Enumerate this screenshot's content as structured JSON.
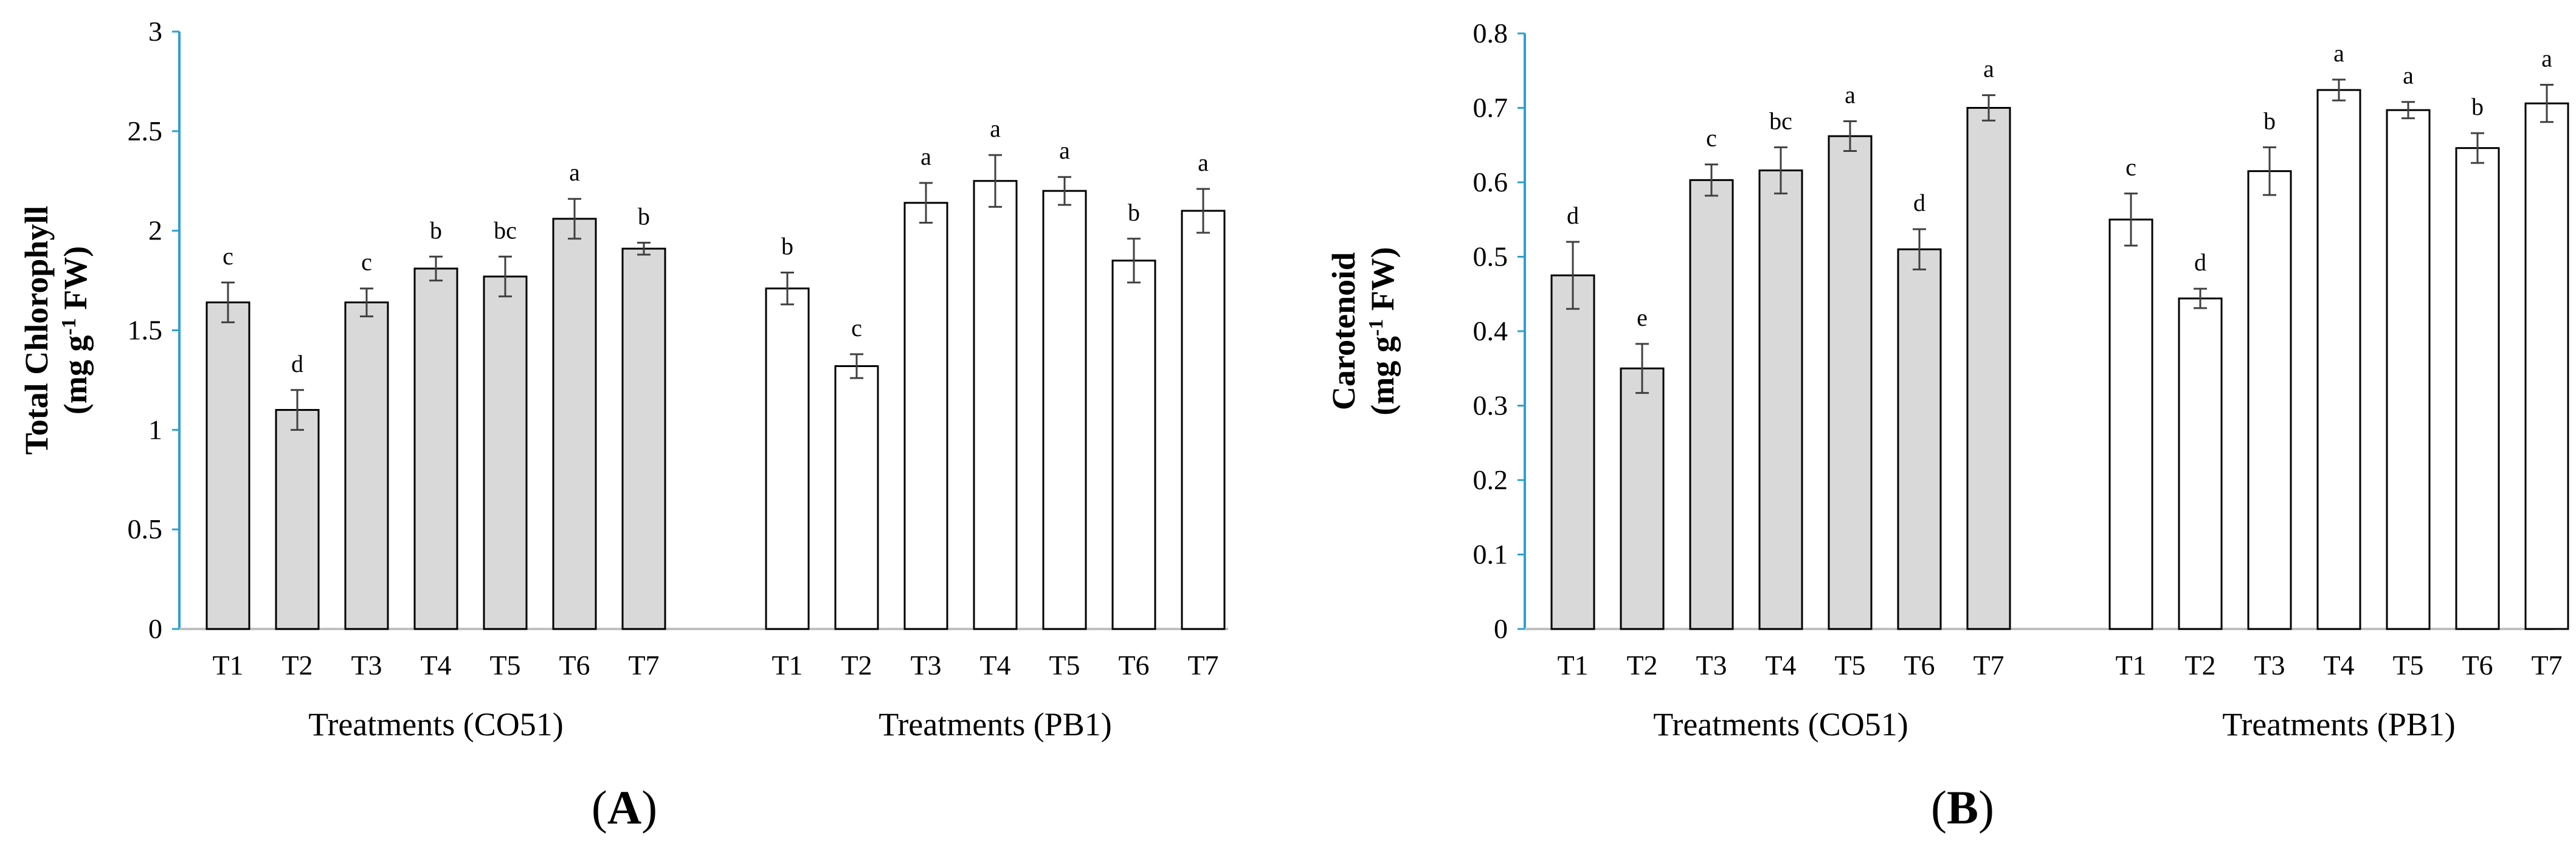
{
  "chart_data": [
    {
      "type": "bar",
      "panel_label": "A",
      "ylabel_line1": "Total Chlorophyll",
      "ylabel_line2": "(mg g",
      "ylabel_sup": "-1",
      "ylabel_line2_end": " FW)",
      "ylim": [
        0,
        3
      ],
      "yticks": [
        "0",
        "0.5",
        "1",
        "1.5",
        "2",
        "2.5",
        "3"
      ],
      "ytick_values": [
        0,
        0.5,
        1,
        1.5,
        2,
        2.5,
        3
      ],
      "categories": [
        "T1",
        "T2",
        "T3",
        "T4",
        "T5",
        "T6",
        "T7"
      ],
      "groups": [
        {
          "name": "Treatments (CO51)",
          "fill": "#d9d9d9",
          "values": [
            1.64,
            1.1,
            1.64,
            1.81,
            1.77,
            2.06,
            1.91
          ],
          "errors": [
            0.1,
            0.1,
            0.07,
            0.06,
            0.1,
            0.1,
            0.03
          ],
          "letters": [
            "c",
            "d",
            "c",
            "b",
            "bc",
            "a",
            "b"
          ]
        },
        {
          "name": "Treatments (PB1)",
          "fill": "#ffffff",
          "values": [
            1.71,
            1.32,
            2.14,
            2.25,
            2.2,
            1.85,
            2.1
          ],
          "errors": [
            0.08,
            0.06,
            0.1,
            0.13,
            0.07,
            0.11,
            0.11
          ],
          "letters": [
            "b",
            "c",
            "a",
            "a",
            "a",
            "b",
            "a"
          ]
        }
      ]
    },
    {
      "type": "bar",
      "panel_label": "B",
      "ylabel_line1": "Carotenoid",
      "ylabel_line2": "(mg g",
      "ylabel_sup": "-1",
      "ylabel_line2_end": " FW)",
      "ylim": [
        0,
        0.8
      ],
      "yticks": [
        "0",
        "0.1",
        "0.2",
        "0.3",
        "0.4",
        "0.5",
        "0.6",
        "0.7",
        "0.8"
      ],
      "ytick_values": [
        0,
        0.1,
        0.2,
        0.3,
        0.4,
        0.5,
        0.6,
        0.7,
        0.8
      ],
      "categories": [
        "T1",
        "T2",
        "T3",
        "T4",
        "T5",
        "T6",
        "T7"
      ],
      "groups": [
        {
          "name": "Treatments (CO51)",
          "fill": "#d9d9d9",
          "values": [
            0.475,
            0.35,
            0.603,
            0.616,
            0.662,
            0.51,
            0.7
          ],
          "errors": [
            0.045,
            0.033,
            0.021,
            0.031,
            0.02,
            0.027,
            0.017
          ],
          "letters": [
            "d",
            "e",
            "c",
            "bc",
            "a",
            "d",
            "a"
          ]
        },
        {
          "name": "Treatments (PB1)",
          "fill": "#ffffff",
          "values": [
            0.55,
            0.444,
            0.615,
            0.724,
            0.697,
            0.646,
            0.706
          ],
          "errors": [
            0.035,
            0.013,
            0.032,
            0.014,
            0.011,
            0.02,
            0.025
          ],
          "letters": [
            "c",
            "d",
            "b",
            "a",
            "a",
            "b",
            "a"
          ]
        }
      ]
    }
  ]
}
